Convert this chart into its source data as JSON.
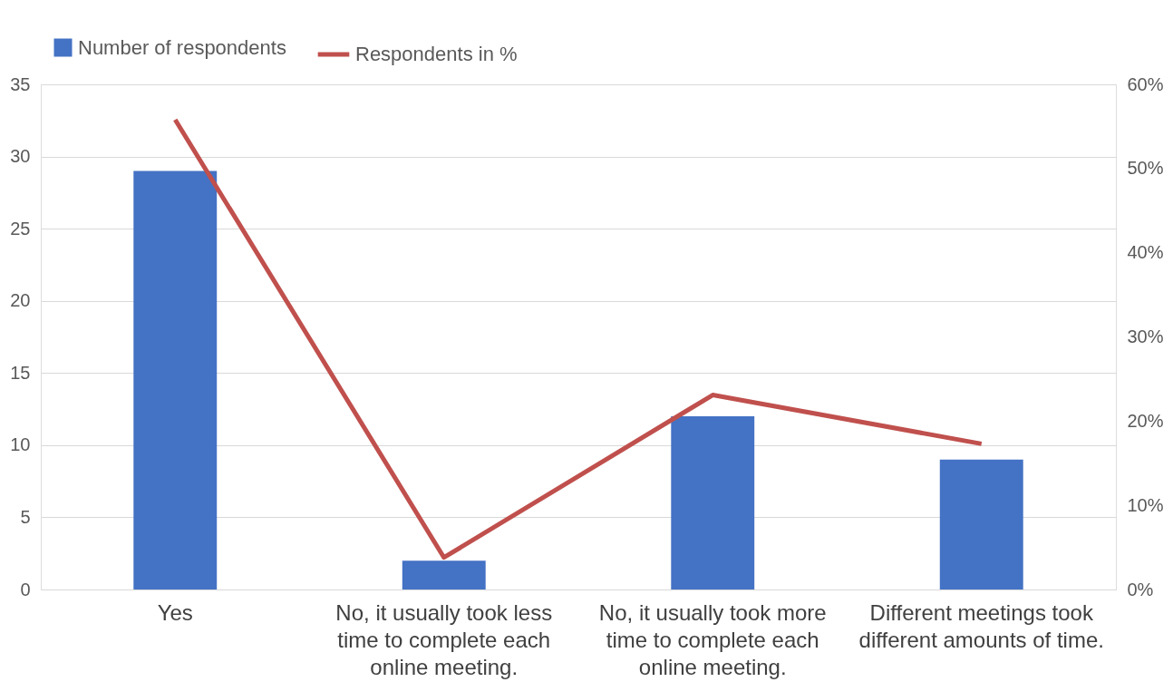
{
  "chart_data": {
    "type": "bar",
    "categories": [
      "Yes",
      "No, it usually took less time to complete each online meeting.",
      "No, it usually took more time to complete each online meeting.",
      "Different meetings took different amounts of time."
    ],
    "series": [
      {
        "name": "Number of respondents",
        "color": "#4472c4",
        "values": [
          29,
          2,
          12,
          9
        ]
      },
      {
        "name": "Respondents in %",
        "type": "line",
        "axis": "y2",
        "color": "#c0504d",
        "values": [
          55.8,
          3.8,
          23.1,
          17.3
        ]
      }
    ],
    "ylim": [
      0,
      35
    ],
    "yticks": [
      0,
      5,
      10,
      15,
      20,
      25,
      30,
      35
    ],
    "y2lim": [
      0,
      60
    ],
    "y2ticks": [
      {
        "value": 0,
        "label": "0%"
      },
      {
        "value": 10,
        "label": "10%"
      },
      {
        "value": 20,
        "label": "20%"
      },
      {
        "value": 30,
        "label": "30%"
      },
      {
        "value": 40,
        "label": "40%"
      },
      {
        "value": 50,
        "label": "50%"
      },
      {
        "value": 60,
        "label": "60%"
      }
    ],
    "grid": "y",
    "legend": "top",
    "marker": "none",
    "line_style": "solid"
  }
}
